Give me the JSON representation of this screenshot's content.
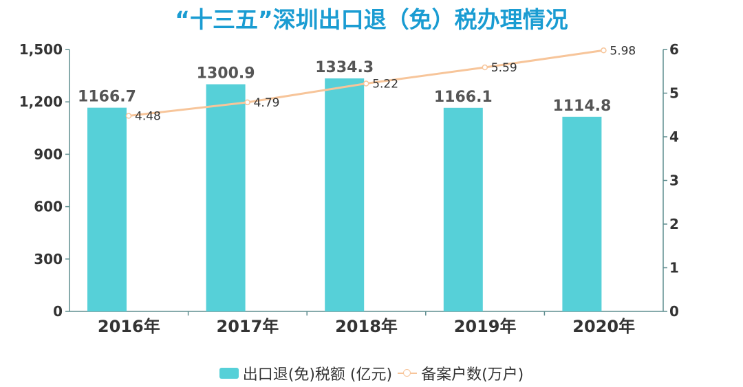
{
  "chart_data": {
    "type": "bar",
    "title": "“十三五”深圳出口退（免）税办理情况",
    "categories": [
      "2016年",
      "2017年",
      "2018年",
      "2019年",
      "2020年"
    ],
    "series": [
      {
        "name": "出口退(免)税额 (亿元)",
        "type": "bar",
        "axis": "left",
        "values": [
          1166.7,
          1300.9,
          1334.3,
          1166.1,
          1114.8
        ],
        "labels": [
          "1166.7",
          "1300.9",
          "1334.3",
          "1166.1",
          "1114.8"
        ]
      },
      {
        "name": "备案户数(万户)",
        "type": "line",
        "axis": "right",
        "values": [
          4.48,
          4.79,
          5.22,
          5.59,
          5.98
        ],
        "labels": [
          "4.48",
          "4.79",
          "5.22",
          "5.59",
          "5.98"
        ]
      }
    ],
    "y_left": {
      "min": 0,
      "max": 1500,
      "ticks": [
        "0",
        "300",
        "600",
        "900",
        "1,200",
        "1,500"
      ]
    },
    "y_right": {
      "min": 0,
      "max": 6,
      "ticks": [
        "0",
        "1",
        "2",
        "3",
        "4",
        "5",
        "6"
      ]
    },
    "grid": false,
    "legend_position": "bottom-center",
    "colors": {
      "bar": "#56d0d8",
      "line": "#f7c59a",
      "axis": "#5e8d8f",
      "title": "#1a9cd2"
    }
  }
}
